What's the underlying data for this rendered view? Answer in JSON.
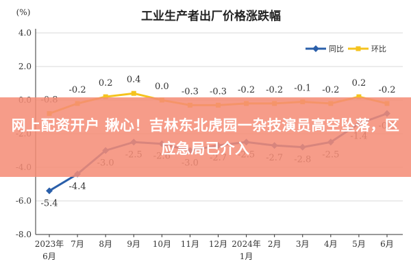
{
  "chart_data": {
    "type": "line",
    "title": "工业生产者出厂价格涨跌幅",
    "unit_label": "(%)",
    "categories": [
      "2023年6月",
      "7月",
      "8月",
      "9月",
      "10月",
      "11月",
      "12月",
      "2024年1月",
      "2月",
      "3月",
      "4月",
      "5月",
      "6月"
    ],
    "ylim": [
      -8.0,
      4.0
    ],
    "yticks": [
      "4.0",
      "2.0",
      "0.0",
      "-2.0",
      "-4.0",
      "-6.0",
      "-8.0"
    ],
    "grid": "horizontal",
    "legend_position": "top-right",
    "series": [
      {
        "name": "同比",
        "color": "#2a5faa",
        "values": [
          -5.4,
          -4.4,
          -3.0,
          -2.5,
          -2.6,
          -3.0,
          -2.7,
          -2.5,
          -2.7,
          -2.8,
          -2.5,
          -1.4,
          -0.8
        ],
        "labels": [
          "-5.4",
          "-4.4",
          "-3.0",
          "-2.5",
          "-2.6",
          "-3.0",
          "-2.7",
          "-2.5",
          "-2.7",
          "-2.8",
          "-2.5",
          "-1.4",
          "-0.8"
        ]
      },
      {
        "name": "环比",
        "color": "#f5c31e",
        "values": [
          -0.8,
          -0.2,
          0.2,
          0.4,
          0.0,
          -0.3,
          -0.3,
          -0.2,
          -0.2,
          -0.1,
          -0.2,
          0.2,
          -0.2
        ],
        "labels": [
          "-0.8",
          "-0.2",
          "0.2",
          "0.4",
          "0.0",
          "-0.3",
          "-0.3",
          "-0.2",
          "-0.2",
          "-0.1",
          "-0.2",
          "0.2",
          "-0.2"
        ]
      }
    ]
  },
  "overlay": {
    "text": "网上配资开户 揪心！吉林东北虎园一杂技演员高空坠落，区应急局已介入"
  },
  "colors": {
    "axis": "#333333",
    "grid": "#d9d9d9",
    "overlay_bg": "#f58c76"
  }
}
